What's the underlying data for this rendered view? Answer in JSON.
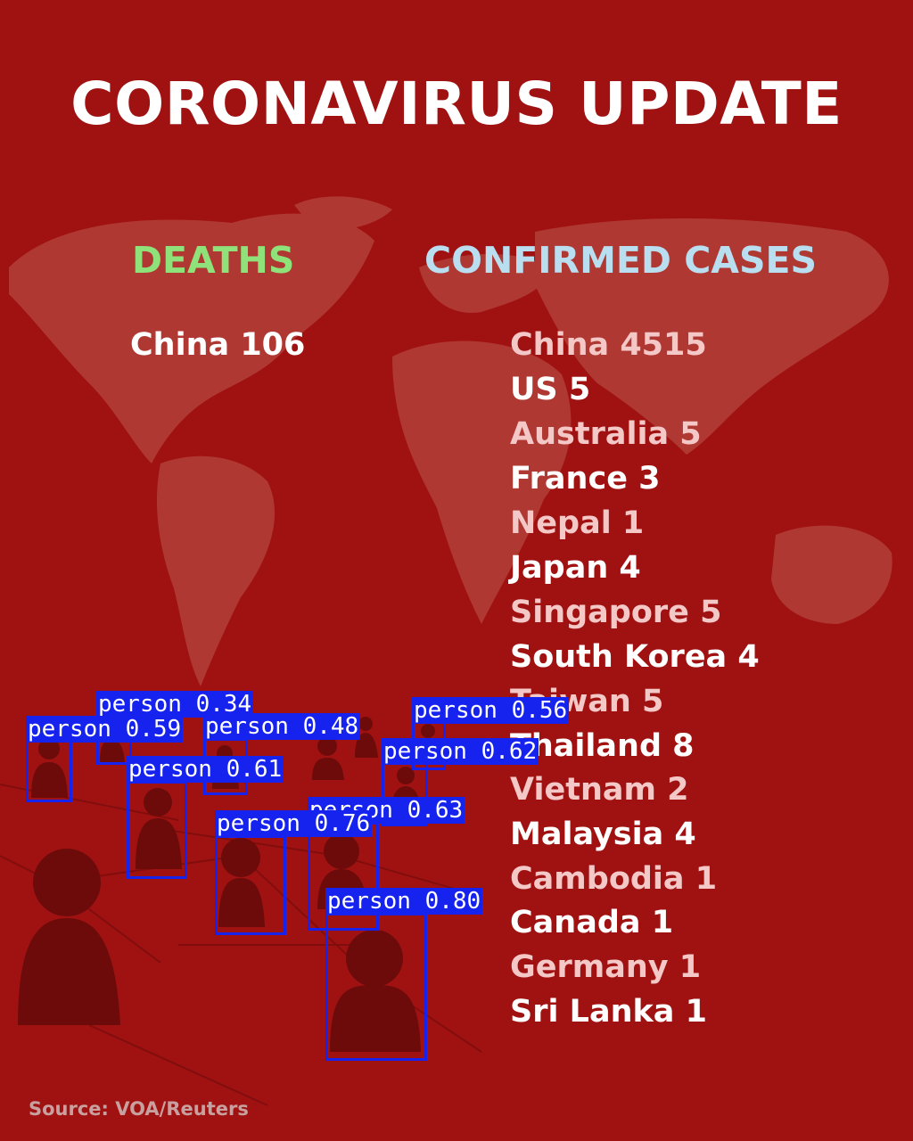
{
  "title": "CORONAVIRUS UPDATE",
  "deaths": {
    "heading": "DEATHS",
    "heading_color": "#8fe27a",
    "entries": [
      "China 106"
    ]
  },
  "confirmed_cases": {
    "heading": "CONFIRMED CASES",
    "heading_color": "#b8def0",
    "entries": [
      "China 4515",
      "US 5",
      "Australia 5",
      "France 3",
      "Nepal 1",
      "Japan 4",
      "Singapore 5",
      "South Korea 4",
      "Taiwan 5",
      "Thailand 8",
      "Vietnam 2",
      "Malaysia 4",
      "Cambodia 1",
      "Canada 1",
      "Germany 1",
      "Sri Lanka 1"
    ],
    "alternating_colors": [
      "#f5c8c8",
      "#ffffff"
    ]
  },
  "source": "Source: VOA/Reuters",
  "detections": {
    "box_color": "#1622ee",
    "labels": [
      "person 0.34",
      "person 0.59",
      "person 0.48",
      "person 0.56",
      "person 0.62",
      "person 0.61",
      "person 0.63",
      "person 0.76",
      "person 0.80"
    ]
  }
}
